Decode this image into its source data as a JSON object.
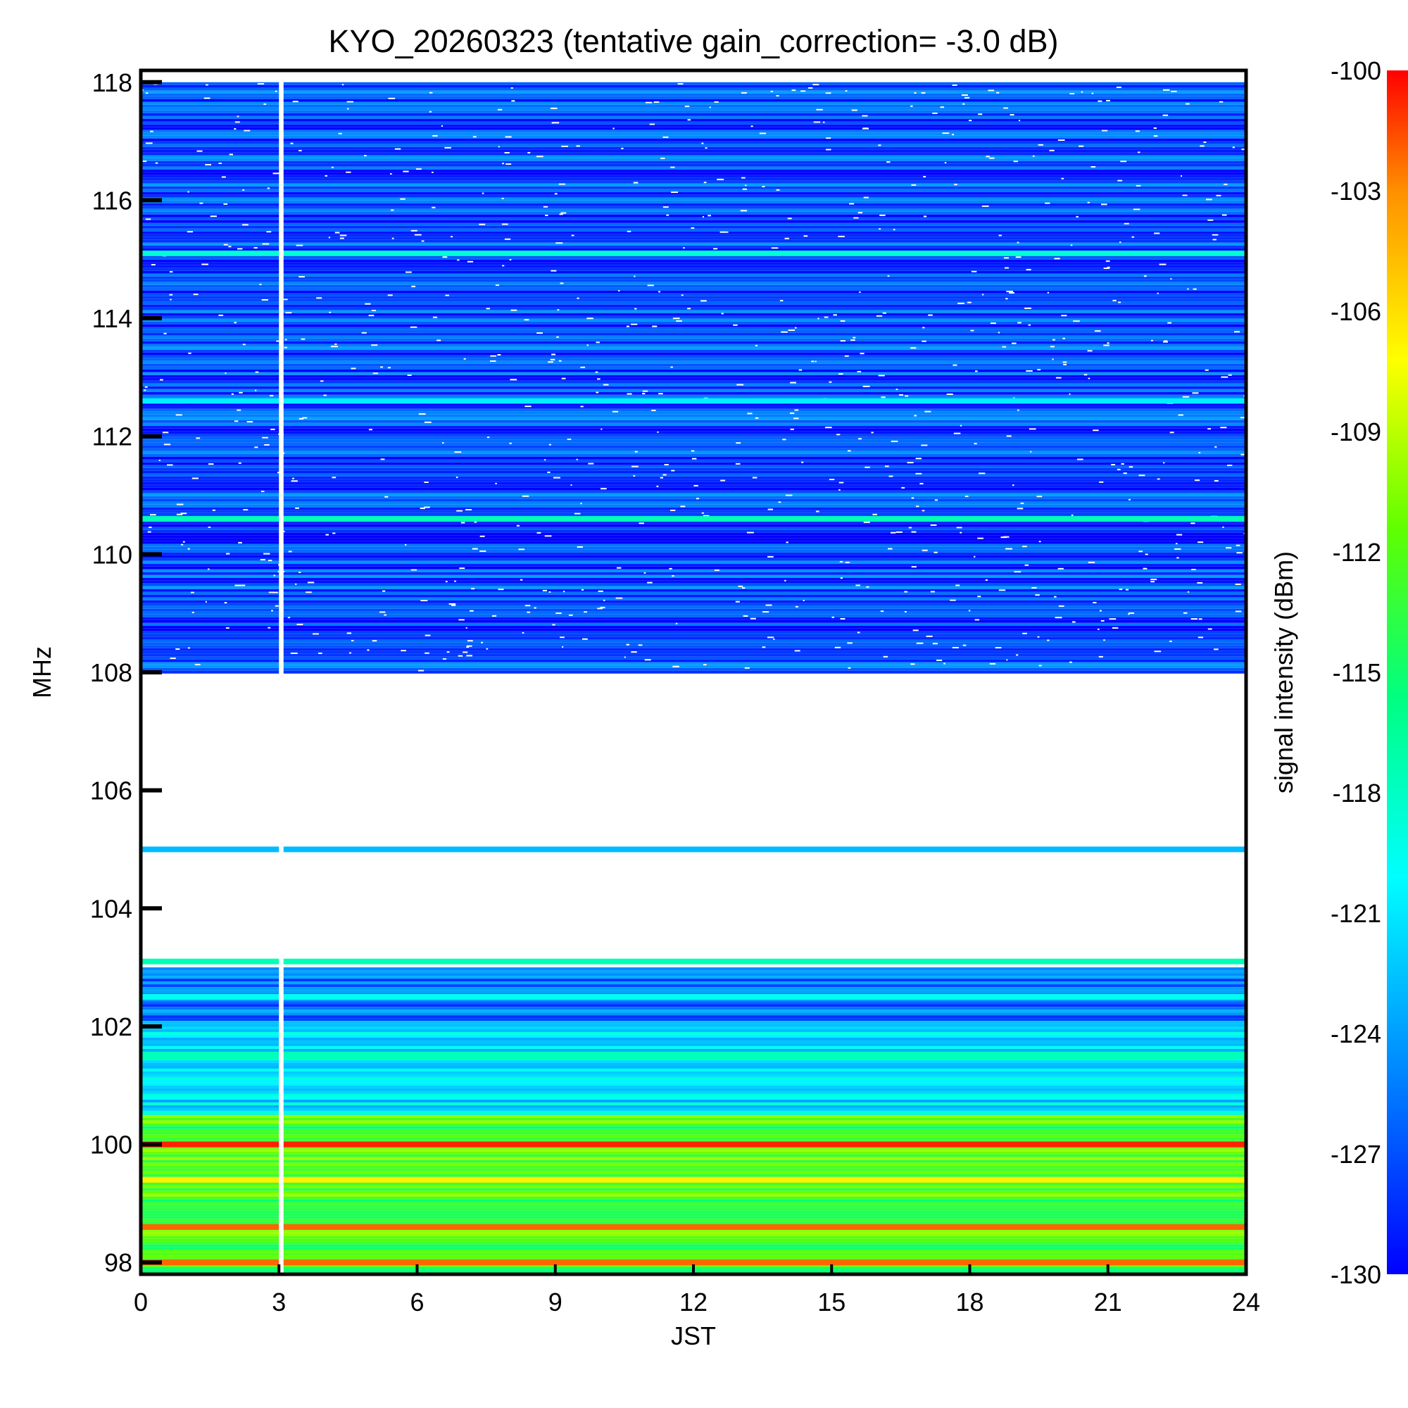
{
  "chart_data": {
    "type": "heatmap",
    "title": "KYO_20260323 (tentative gain_correction= -3.0 dB)",
    "xlabel": "JST",
    "ylabel": "MHz",
    "colorbar_label": "signal intensity (dBm)",
    "xlim": [
      0,
      24
    ],
    "ylim": [
      97.8,
      118.2
    ],
    "x_ticks": [
      0,
      3,
      6,
      9,
      12,
      15,
      18,
      21,
      24
    ],
    "y_ticks": [
      98,
      100,
      102,
      104,
      106,
      108,
      110,
      112,
      114,
      116,
      118
    ],
    "colorbar_range": [
      -130,
      -100
    ],
    "colorbar_ticks": [
      -100,
      -103,
      -106,
      -109,
      -112,
      -115,
      -118,
      -121,
      -124,
      -127,
      -130
    ],
    "colormap": [
      "#0000ff",
      "#0090ff",
      "#00ffff",
      "#00ff80",
      "#60ff00",
      "#ffff00",
      "#ff9000",
      "#ff0000"
    ],
    "data_gap_hours": [
      3.0,
      3.1
    ],
    "persistent_lines_dBm": [
      {
        "freq_mhz": 115.1,
        "dbm": -120
      },
      {
        "freq_mhz": 112.6,
        "dbm": -122
      },
      {
        "freq_mhz": 110.6,
        "dbm": -119
      },
      {
        "freq_mhz": 105.0,
        "dbm": -124
      },
      {
        "freq_mhz": 103.1,
        "dbm": -119
      },
      {
        "freq_mhz": 102.5,
        "dbm": -121
      },
      {
        "freq_mhz": 101.5,
        "dbm": -119
      },
      {
        "freq_mhz": 100.0,
        "dbm": -101
      },
      {
        "freq_mhz": 99.4,
        "dbm": -108
      },
      {
        "freq_mhz": 98.6,
        "dbm": -103
      },
      {
        "freq_mhz": 98.0,
        "dbm": -103
      }
    ],
    "background_dBm": [
      {
        "freq_range": [
          108,
          118
        ],
        "dbm": -128
      },
      {
        "freq_range": [
          103,
          108
        ],
        "dbm": null
      },
      {
        "freq_range": [
          102,
          103
        ],
        "dbm": -126
      },
      {
        "freq_range": [
          100.5,
          102
        ],
        "dbm": -122
      },
      {
        "freq_range": [
          97.8,
          100.5
        ],
        "dbm": -114
      }
    ]
  }
}
